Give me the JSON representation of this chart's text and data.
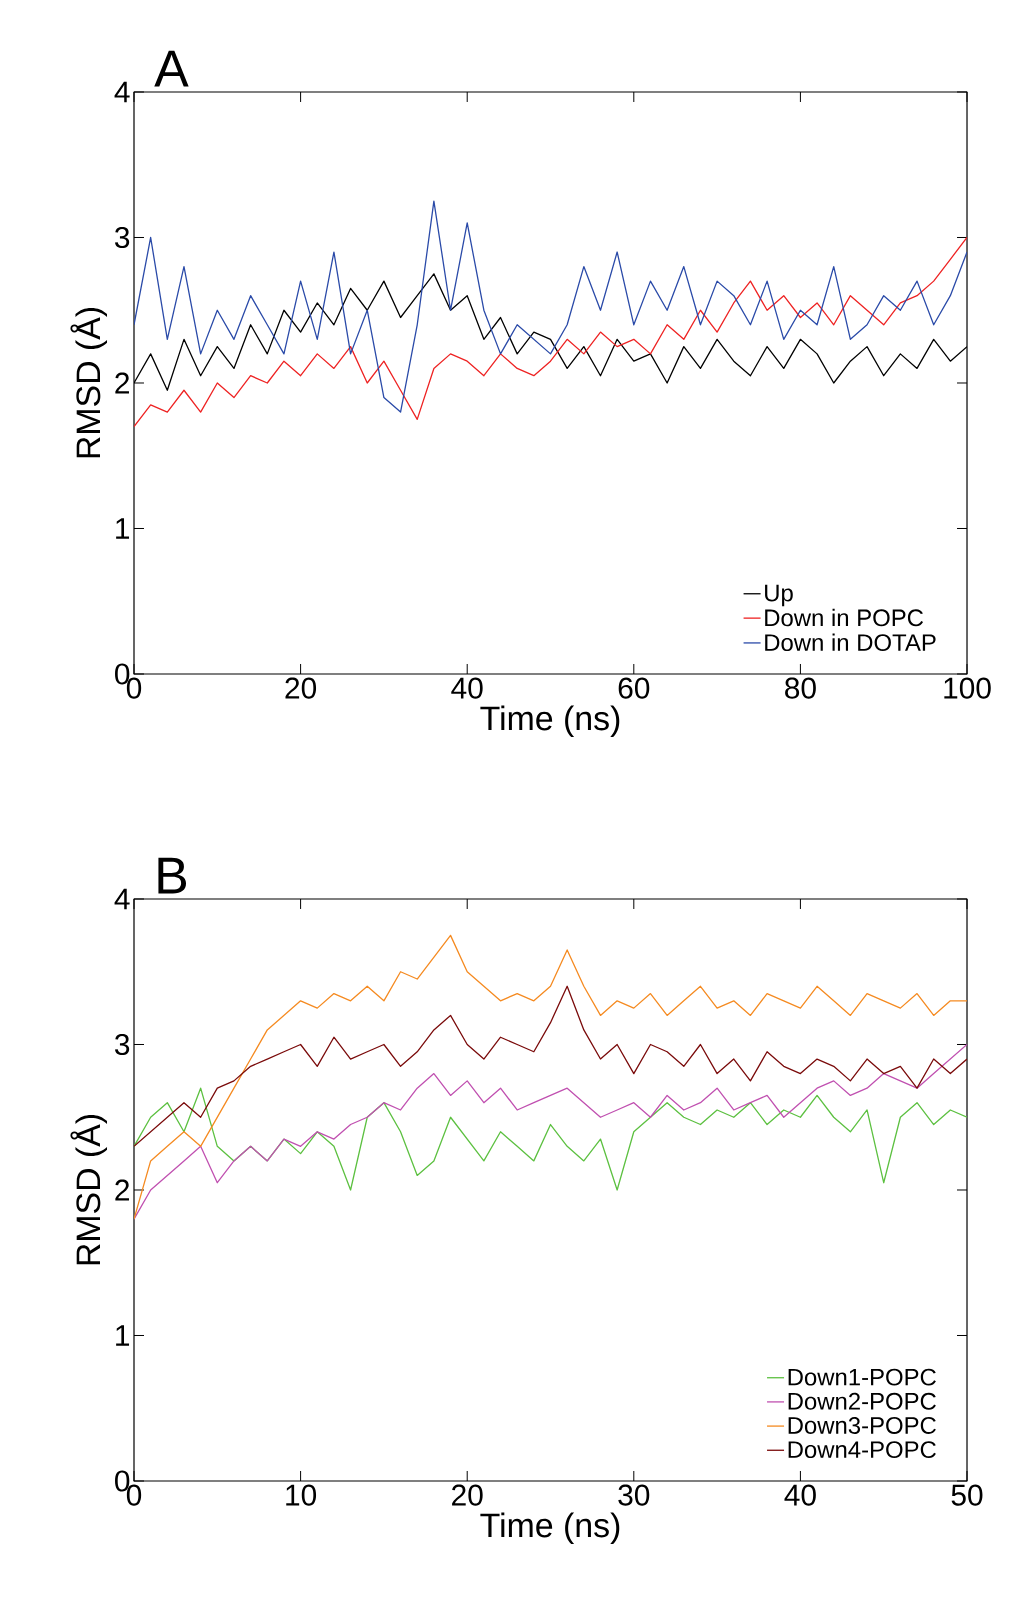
{
  "chart_data": [
    {
      "type": "line",
      "title": "A",
      "xlabel": "Time (ns)",
      "ylabel": "RMSD (Å)",
      "xlim": [
        0,
        100
      ],
      "ylim": [
        0,
        4
      ],
      "xticks": [
        0,
        20,
        40,
        60,
        80,
        100
      ],
      "yticks": [
        0,
        1,
        2,
        3,
        4
      ],
      "legend": "bottom right",
      "grid": false,
      "x": [
        0,
        2,
        4,
        6,
        8,
        10,
        12,
        14,
        16,
        18,
        20,
        22,
        24,
        26,
        28,
        30,
        32,
        34,
        36,
        38,
        40,
        42,
        44,
        46,
        48,
        50,
        52,
        54,
        56,
        58,
        60,
        62,
        64,
        66,
        68,
        70,
        72,
        74,
        76,
        78,
        80,
        82,
        84,
        86,
        88,
        90,
        92,
        94,
        96,
        98,
        100
      ],
      "series": [
        {
          "name": "Up",
          "color": "#000000",
          "values": [
            2.0,
            2.2,
            1.95,
            2.3,
            2.05,
            2.25,
            2.1,
            2.4,
            2.2,
            2.5,
            2.35,
            2.55,
            2.4,
            2.65,
            2.5,
            2.7,
            2.45,
            2.6,
            2.75,
            2.5,
            2.6,
            2.3,
            2.45,
            2.2,
            2.35,
            2.3,
            2.1,
            2.25,
            2.05,
            2.3,
            2.15,
            2.2,
            2.0,
            2.25,
            2.1,
            2.3,
            2.15,
            2.05,
            2.25,
            2.1,
            2.3,
            2.2,
            2.0,
            2.15,
            2.25,
            2.05,
            2.2,
            2.1,
            2.3,
            2.15,
            2.25
          ]
        },
        {
          "name": "Down in POPC",
          "color": "#ee2222",
          "values": [
            1.7,
            1.85,
            1.8,
            1.95,
            1.8,
            2.0,
            1.9,
            2.05,
            2.0,
            2.15,
            2.05,
            2.2,
            2.1,
            2.25,
            2.0,
            2.15,
            1.95,
            1.75,
            2.1,
            2.2,
            2.15,
            2.05,
            2.2,
            2.1,
            2.05,
            2.15,
            2.3,
            2.2,
            2.35,
            2.25,
            2.3,
            2.2,
            2.4,
            2.3,
            2.5,
            2.35,
            2.55,
            2.7,
            2.5,
            2.6,
            2.45,
            2.55,
            2.4,
            2.6,
            2.5,
            2.4,
            2.55,
            2.6,
            2.7,
            2.85,
            3.0
          ]
        },
        {
          "name": "Down in DOTAP",
          "color": "#2a4aa8",
          "values": [
            2.4,
            3.0,
            2.3,
            2.8,
            2.2,
            2.5,
            2.3,
            2.6,
            2.4,
            2.2,
            2.7,
            2.3,
            2.9,
            2.2,
            2.5,
            1.9,
            1.8,
            2.4,
            3.25,
            2.5,
            3.1,
            2.5,
            2.2,
            2.4,
            2.3,
            2.2,
            2.4,
            2.8,
            2.5,
            2.9,
            2.4,
            2.7,
            2.5,
            2.8,
            2.4,
            2.7,
            2.6,
            2.4,
            2.7,
            2.3,
            2.5,
            2.4,
            2.8,
            2.3,
            2.4,
            2.6,
            2.5,
            2.7,
            2.4,
            2.6,
            2.9
          ]
        }
      ]
    },
    {
      "type": "line",
      "title": "B",
      "xlabel": "Time (ns)",
      "ylabel": "RMSD (Å)",
      "xlim": [
        0,
        50
      ],
      "ylim": [
        0,
        4
      ],
      "xticks": [
        0,
        10,
        20,
        30,
        40,
        50
      ],
      "yticks": [
        0,
        1,
        2,
        3,
        4
      ],
      "legend": "bottom right",
      "grid": false,
      "x": [
        0,
        1,
        2,
        3,
        4,
        5,
        6,
        7,
        8,
        9,
        10,
        11,
        12,
        13,
        14,
        15,
        16,
        17,
        18,
        19,
        20,
        21,
        22,
        23,
        24,
        25,
        26,
        27,
        28,
        29,
        30,
        31,
        32,
        33,
        34,
        35,
        36,
        37,
        38,
        39,
        40,
        41,
        42,
        43,
        44,
        45,
        46,
        47,
        48,
        49,
        50
      ],
      "series": [
        {
          "name": "Down1-POPC",
          "color": "#5cc040",
          "values": [
            2.3,
            2.5,
            2.6,
            2.4,
            2.7,
            2.3,
            2.2,
            2.3,
            2.2,
            2.35,
            2.25,
            2.4,
            2.3,
            2.0,
            2.5,
            2.6,
            2.4,
            2.1,
            2.2,
            2.5,
            2.35,
            2.2,
            2.4,
            2.3,
            2.2,
            2.45,
            2.3,
            2.2,
            2.35,
            2.0,
            2.4,
            2.5,
            2.6,
            2.5,
            2.45,
            2.55,
            2.5,
            2.6,
            2.45,
            2.55,
            2.5,
            2.65,
            2.5,
            2.4,
            2.55,
            2.05,
            2.5,
            2.6,
            2.45,
            2.55,
            2.5
          ]
        },
        {
          "name": "Down2-POPC",
          "color": "#c050b0",
          "values": [
            1.8,
            2.0,
            2.1,
            2.2,
            2.3,
            2.05,
            2.2,
            2.3,
            2.2,
            2.35,
            2.3,
            2.4,
            2.35,
            2.45,
            2.5,
            2.6,
            2.55,
            2.7,
            2.8,
            2.65,
            2.75,
            2.6,
            2.7,
            2.55,
            2.6,
            2.65,
            2.7,
            2.6,
            2.5,
            2.55,
            2.6,
            2.5,
            2.65,
            2.55,
            2.6,
            2.7,
            2.55,
            2.6,
            2.65,
            2.5,
            2.6,
            2.7,
            2.75,
            2.65,
            2.7,
            2.8,
            2.75,
            2.7,
            2.8,
            2.9,
            3.0
          ]
        },
        {
          "name": "Down3-POPC",
          "color": "#f58a20",
          "values": [
            1.8,
            2.2,
            2.3,
            2.4,
            2.3,
            2.5,
            2.7,
            2.9,
            3.1,
            3.2,
            3.3,
            3.25,
            3.35,
            3.3,
            3.4,
            3.3,
            3.5,
            3.45,
            3.6,
            3.75,
            3.5,
            3.4,
            3.3,
            3.35,
            3.3,
            3.4,
            3.65,
            3.4,
            3.2,
            3.3,
            3.25,
            3.35,
            3.2,
            3.3,
            3.4,
            3.25,
            3.3,
            3.2,
            3.35,
            3.3,
            3.25,
            3.4,
            3.3,
            3.2,
            3.35,
            3.3,
            3.25,
            3.35,
            3.2,
            3.3,
            3.3
          ]
        },
        {
          "name": "Down4-POPC",
          "color": "#7a0a0a",
          "values": [
            2.3,
            2.4,
            2.5,
            2.6,
            2.5,
            2.7,
            2.75,
            2.85,
            2.9,
            2.95,
            3.0,
            2.85,
            3.05,
            2.9,
            2.95,
            3.0,
            2.85,
            2.95,
            3.1,
            3.2,
            3.0,
            2.9,
            3.05,
            3.0,
            2.95,
            3.15,
            3.4,
            3.1,
            2.9,
            3.0,
            2.8,
            3.0,
            2.95,
            2.85,
            3.0,
            2.8,
            2.9,
            2.75,
            2.95,
            2.85,
            2.8,
            2.9,
            2.85,
            2.75,
            2.9,
            2.8,
            2.85,
            2.7,
            2.9,
            2.8,
            2.9
          ]
        }
      ]
    }
  ]
}
